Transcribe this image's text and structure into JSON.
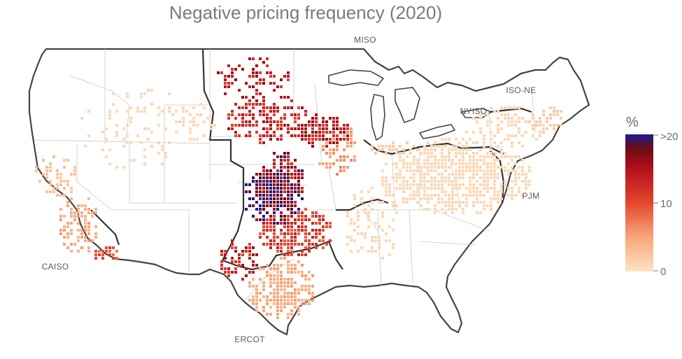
{
  "title": "Negative pricing frequency (2020)",
  "regions": [
    {
      "id": "miso",
      "label": "MISO"
    },
    {
      "id": "iso-ne",
      "label": "ISO-NE"
    },
    {
      "id": "nyiso",
      "label": "NYISO"
    },
    {
      "id": "pjm",
      "label": "PJM"
    },
    {
      "id": "caiso",
      "label": "CAISO"
    },
    {
      "id": "ercot",
      "label": "ERCOT"
    }
  ],
  "legend": {
    "title": "%",
    "ticks": [
      ">20",
      "10",
      "0"
    ],
    "stops": [
      {
        "value": 0,
        "color": "#fde3c2"
      },
      {
        "value": 5,
        "color": "#f8a77a"
      },
      {
        "value": 10,
        "color": "#e4472f"
      },
      {
        "value": 15,
        "color": "#b3101b"
      },
      {
        "value": 18,
        "color": "#6a0b16"
      },
      {
        "value": 20,
        "color": "#1c1a8c"
      }
    ]
  }
}
